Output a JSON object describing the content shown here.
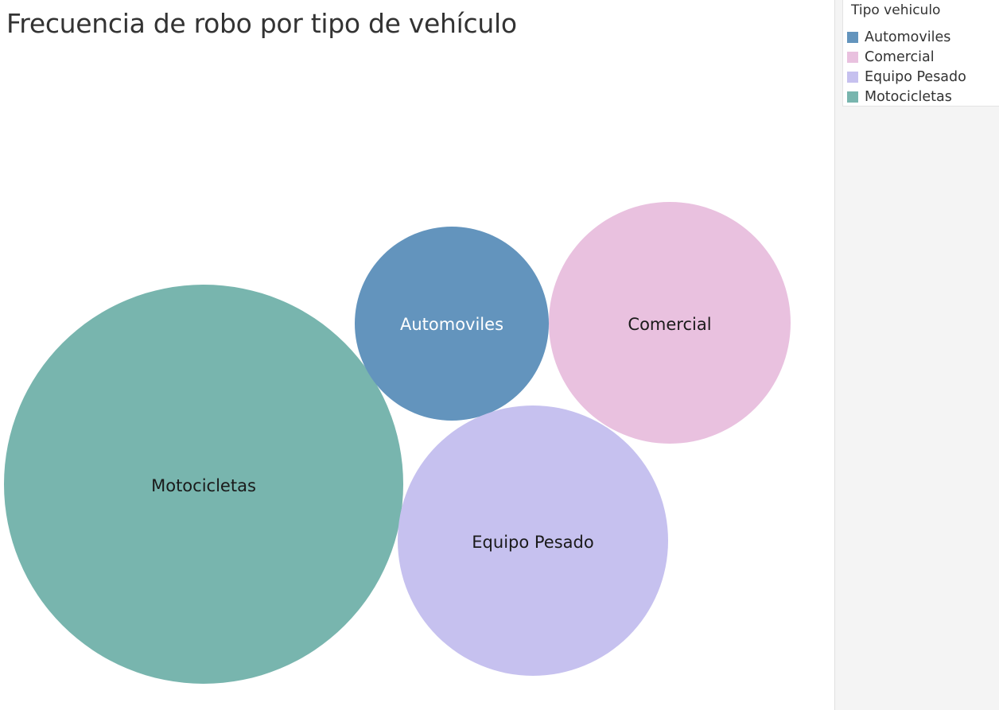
{
  "chart_data": {
    "type": "packed-bubble",
    "title": "Frecuencia de robo por tipo de vehículo",
    "legend_title": "Tipo vehiculo",
    "legend_position": "top-right",
    "categories": [
      "Automoviles",
      "Comercial",
      "Equipo Pesado",
      "Motocicletas"
    ],
    "series": [
      {
        "name": "Automoviles",
        "label": "Automoviles",
        "color": "#6394bd",
        "label_color": "#ffffff"
      },
      {
        "name": "Comercial",
        "label": "Comercial",
        "color": "#e9c1df",
        "label_color": "#1a1a1a"
      },
      {
        "name": "Equipo Pesado",
        "label": "Equipo Pesado",
        "color": "#c6c1ef",
        "label_color": "#1a1a1a"
      },
      {
        "name": "Motocicletas",
        "label": "Motocicletas",
        "color": "#78b5ae",
        "label_color": "#1a1a1a"
      }
    ]
  }
}
